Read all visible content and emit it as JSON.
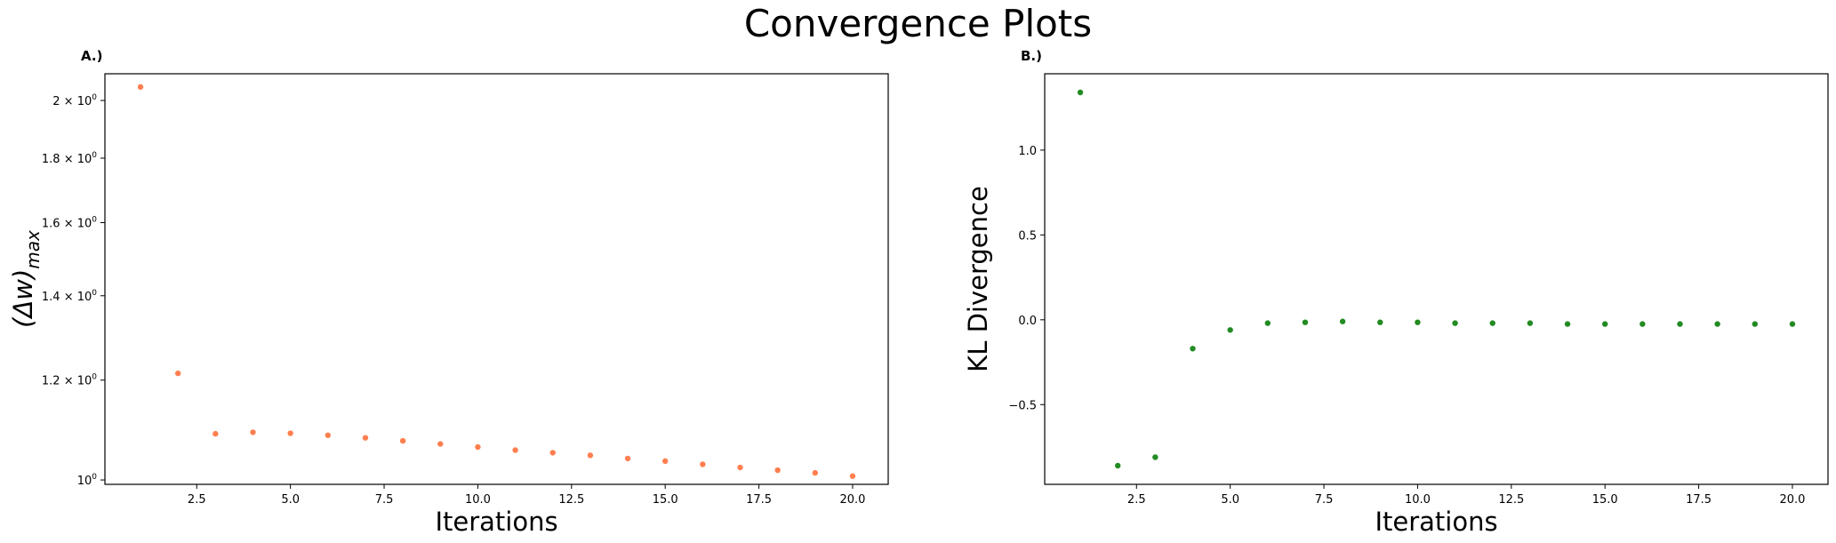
{
  "figure": {
    "title": "Convergence Plots"
  },
  "chart_data": [
    {
      "panel_label": "A.)",
      "type": "scatter",
      "xlabel": "Iterations",
      "ylabel": "(Δw)",
      "ylabel_subscript": "max",
      "yscale": "log",
      "xlim": [
        0.05,
        20.95
      ],
      "ylim": [
        0.992,
        2.1
      ],
      "x_ticks": [
        2.5,
        5.0,
        7.5,
        10.0,
        12.5,
        15.0,
        17.5,
        20.0
      ],
      "x_tick_labels": [
        "2.5",
        "5.0",
        "7.5",
        "10.0",
        "12.5",
        "15.0",
        "17.5",
        "20.0"
      ],
      "y_ticks": [
        1.0,
        1.2,
        1.4,
        1.6,
        1.8,
        2.0
      ],
      "y_tick_labels": [
        {
          "mantissa": "",
          "exp": "0",
          "base": "10"
        },
        {
          "mantissa": "1.2 × ",
          "exp": "0",
          "base": "10"
        },
        {
          "mantissa": "1.4 × ",
          "exp": "0",
          "base": "10"
        },
        {
          "mantissa": "1.6 × ",
          "exp": "0",
          "base": "10"
        },
        {
          "mantissa": "1.8 × ",
          "exp": "0",
          "base": "10"
        },
        {
          "mantissa": "2 × ",
          "exp": "0",
          "base": "10"
        }
      ],
      "grid": false,
      "color": "#ff7f50",
      "x": [
        1,
        2,
        3,
        4,
        5,
        6,
        7,
        8,
        9,
        10,
        11,
        12,
        13,
        14,
        15,
        16,
        17,
        18,
        19,
        20
      ],
      "y": [
        2.05,
        1.215,
        1.088,
        1.091,
        1.089,
        1.085,
        1.08,
        1.074,
        1.068,
        1.062,
        1.056,
        1.051,
        1.046,
        1.04,
        1.035,
        1.029,
        1.023,
        1.018,
        1.013,
        1.007
      ]
    },
    {
      "panel_label": "B.)",
      "type": "scatter",
      "xlabel": "Iterations",
      "ylabel": "KL Divergence",
      "yscale": "linear",
      "xlim": [
        0.05,
        20.95
      ],
      "ylim": [
        -0.97,
        1.45
      ],
      "x_ticks": [
        2.5,
        5.0,
        7.5,
        10.0,
        12.5,
        15.0,
        17.5,
        20.0
      ],
      "x_tick_labels": [
        "2.5",
        "5.0",
        "7.5",
        "10.0",
        "12.5",
        "15.0",
        "17.5",
        "20.0"
      ],
      "y_ticks": [
        -0.5,
        0.0,
        0.5,
        1.0
      ],
      "y_tick_labels": [
        "−0.5",
        "0.0",
        "0.5",
        "1.0"
      ],
      "grid": false,
      "color": "#228b22",
      "x": [
        1,
        2,
        3,
        4,
        5,
        6,
        7,
        8,
        9,
        10,
        11,
        12,
        13,
        14,
        15,
        16,
        17,
        18,
        19,
        20
      ],
      "y": [
        1.34,
        -0.86,
        -0.81,
        -0.17,
        -0.06,
        -0.02,
        -0.015,
        -0.01,
        -0.015,
        -0.015,
        -0.02,
        -0.02,
        -0.02,
        -0.025,
        -0.025,
        -0.025,
        -0.025,
        -0.025,
        -0.025,
        -0.025
      ]
    }
  ]
}
